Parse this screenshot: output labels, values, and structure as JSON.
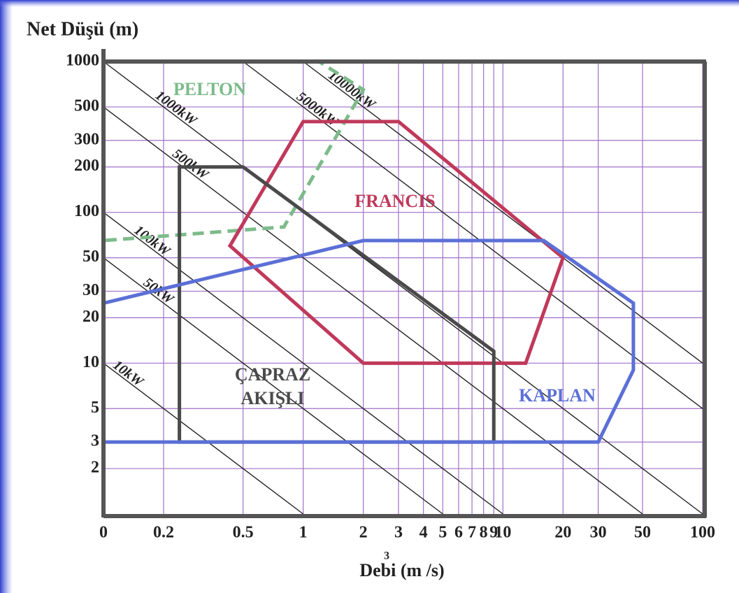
{
  "chart_data": {
    "type": "region",
    "ylabel": "Net Düşü (m)",
    "xlabel": "Debi (m /s)",
    "xlabel_exponent": "3",
    "log_x": true,
    "log_y": true,
    "grid": true,
    "xlim": [
      0.1,
      100
    ],
    "ylim": [
      1,
      1000
    ],
    "xticks": [
      {
        "value": 0.1,
        "label": "0"
      },
      0.2,
      0.5,
      1,
      2,
      3,
      4,
      5,
      6,
      7,
      8,
      9,
      10,
      20,
      30,
      50,
      100
    ],
    "yticks": [
      1000,
      500,
      300,
      200,
      100,
      50,
      30,
      20,
      10,
      5,
      3,
      2
    ],
    "regions": [
      {
        "name": "PELTON",
        "color": "#7dbb8a",
        "dashed": true,
        "x": [
          0.1,
          1.2,
          2,
          0.8,
          0.1
        ],
        "y": [
          1000,
          1000,
          650,
          80,
          65
        ]
      },
      {
        "name": "FRANCIS",
        "color": "#c0395a",
        "dashed": false,
        "x": [
          1,
          3,
          20,
          13,
          2,
          0.43
        ],
        "y": [
          400,
          400,
          50,
          10,
          10,
          60
        ]
      },
      {
        "name": "ÇAPRAZ AKIŞLI",
        "color": "#4a4a4a",
        "dashed": false,
        "x": [
          0.24,
          0.5,
          9,
          9,
          0.24
        ],
        "y": [
          200,
          200,
          12,
          3,
          3
        ]
      },
      {
        "name": "KAPLAN",
        "color": "#5b6fd6",
        "dashed": false,
        "x": [
          0.1,
          2,
          16,
          45,
          45,
          30,
          0.1
        ],
        "y": [
          25,
          65,
          65,
          25,
          9,
          3,
          3
        ]
      }
    ],
    "power_lines": [
      {
        "label": "10kW",
        "x": [
          0.1,
          1
        ],
        "y": [
          10,
          1
        ]
      },
      {
        "label": "50kW",
        "x": [
          0.1,
          5
        ],
        "y": [
          50,
          1
        ]
      },
      {
        "label": "100kW",
        "x": [
          0.1,
          10
        ],
        "y": [
          100,
          1
        ]
      },
      {
        "label": "500kW",
        "x": [
          0.1,
          50
        ],
        "y": [
          500,
          1
        ]
      },
      {
        "label": "1000kW",
        "x": [
          0.1,
          100
        ],
        "y": [
          1000,
          1
        ]
      },
      {
        "label": "5000kW",
        "x": [
          0.5,
          100
        ],
        "y": [
          1000,
          5
        ]
      },
      {
        "label": "10000kW",
        "x": [
          1,
          100
        ],
        "y": [
          1000,
          10
        ]
      }
    ]
  }
}
